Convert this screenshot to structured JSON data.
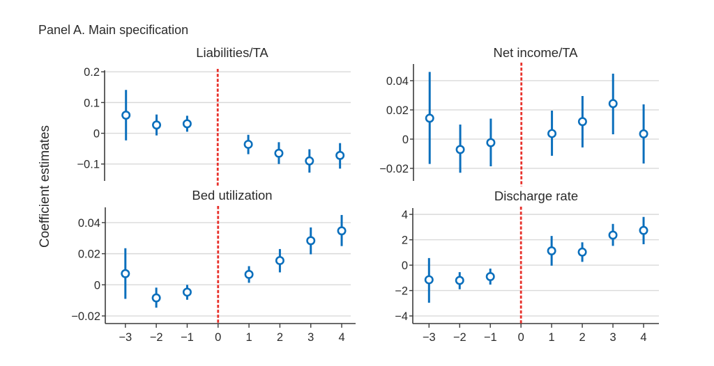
{
  "figure": {
    "panel_title": "Panel A. Main specification",
    "ylabel": "Coefficient estimates"
  },
  "chart_data": [
    {
      "type": "scatter",
      "subtype": "coefficient plot with confidence intervals",
      "title": "Liabilities/TA",
      "xlabel": "",
      "ylabel": "Coefficient estimates",
      "x": [
        -3,
        -2,
        -1,
        1,
        2,
        3,
        4
      ],
      "estimate": [
        0.059,
        0.027,
        0.031,
        -0.036,
        -0.065,
        -0.09,
        -0.072
      ],
      "ci_low": [
        -0.023,
        -0.007,
        0.005,
        -0.068,
        -0.1,
        -0.128,
        -0.115
      ],
      "ci_high": [
        0.141,
        0.061,
        0.057,
        -0.005,
        -0.029,
        -0.052,
        -0.032
      ],
      "xticks": [
        -3,
        -2,
        -1,
        0,
        1,
        2,
        3,
        4
      ],
      "xtick_labels": [
        "−3",
        "−2",
        "−1",
        "0",
        "1",
        "2",
        "3",
        "4"
      ],
      "yticks": [
        0.2,
        0.1,
        0,
        -0.1
      ],
      "ytick_labels": [
        "0.2",
        "0.1",
        "0",
        "−0.1"
      ],
      "ylim": [
        -0.155,
        0.205
      ],
      "xlim": [
        -3.7,
        4.35
      ],
      "grid": true,
      "reference_line": {
        "x": 0,
        "style": "dashed",
        "color": "#e8302a"
      },
      "show_xaxis": false
    },
    {
      "type": "scatter",
      "subtype": "coefficient plot with confidence intervals",
      "title": "Net income/TA",
      "xlabel": "",
      "ylabel": "",
      "x": [
        -3,
        -2,
        -1,
        1,
        2,
        3,
        4
      ],
      "estimate": [
        0.0143,
        -0.0071,
        -0.0024,
        0.0038,
        0.012,
        0.0243,
        0.0036
      ],
      "ci_low": [
        -0.017,
        -0.023,
        -0.0186,
        -0.0114,
        -0.0057,
        0.0033,
        -0.0167
      ],
      "ci_high": [
        0.046,
        0.01,
        0.014,
        0.0195,
        0.0295,
        0.0448,
        0.0238
      ],
      "xticks": [
        -3,
        -2,
        -1,
        0,
        1,
        2,
        3,
        4
      ],
      "xtick_labels": [
        "−3",
        "−2",
        "−1",
        "0",
        "1",
        "2",
        "3",
        "4"
      ],
      "yticks": [
        0.04,
        0.02,
        0,
        -0.02
      ],
      "ytick_labels": [
        "0.04",
        "0.02",
        "0",
        "−0.02"
      ],
      "ylim": [
        -0.0286,
        0.0514
      ],
      "xlim": [
        -3.53,
        4.5
      ],
      "grid": true,
      "reference_line": {
        "x": 0,
        "style": "dashed",
        "color": "#e8302a"
      },
      "show_xaxis": false
    },
    {
      "type": "scatter",
      "subtype": "coefficient plot with confidence intervals",
      "title": "Bed utilization",
      "xlabel": "",
      "ylabel": "Coefficient estimates",
      "x": [
        -3,
        -2,
        -1,
        1,
        2,
        3,
        4
      ],
      "estimate": [
        0.0072,
        -0.0084,
        -0.0047,
        0.0067,
        0.0156,
        0.0284,
        0.0347
      ],
      "ci_low": [
        -0.009,
        -0.0147,
        -0.0096,
        0.0013,
        0.008,
        0.0196,
        0.0249
      ],
      "ci_high": [
        0.0235,
        -0.0018,
        0.0,
        0.012,
        0.023,
        0.0369,
        0.0449
      ],
      "xticks": [
        -3,
        -2,
        -1,
        0,
        1,
        2,
        3,
        4
      ],
      "xtick_labels": [
        "−3",
        "−2",
        "−1",
        "0",
        "1",
        "2",
        "3",
        "4"
      ],
      "yticks": [
        0.04,
        0.02,
        0,
        -0.02
      ],
      "ytick_labels": [
        "0.04",
        "0.02",
        "0",
        "−0.02"
      ],
      "ylim": [
        -0.0249,
        0.0498
      ],
      "xlim": [
        -3.65,
        4.45
      ],
      "grid": true,
      "reference_line": {
        "x": 0,
        "style": "dashed",
        "color": "#e8302a"
      },
      "show_xaxis": true
    },
    {
      "type": "scatter",
      "subtype": "coefficient plot with confidence intervals",
      "title": "Discharge rate",
      "xlabel": "",
      "ylabel": "",
      "x": [
        -3,
        -2,
        -1,
        1,
        2,
        3,
        4
      ],
      "estimate": [
        -1.15,
        -1.2,
        -0.9,
        1.13,
        1.03,
        2.37,
        2.74
      ],
      "ci_low": [
        -2.96,
        -1.9,
        -1.53,
        -0.04,
        0.26,
        1.52,
        1.65
      ],
      "ci_high": [
        0.56,
        -0.55,
        -0.27,
        2.3,
        1.8,
        3.25,
        3.8
      ],
      "xticks": [
        -3,
        -2,
        -1,
        0,
        1,
        2,
        3,
        4
      ],
      "xtick_labels": [
        "−3",
        "−2",
        "−1",
        "0",
        "1",
        "2",
        "3",
        "4"
      ],
      "yticks": [
        4,
        2,
        0,
        -2,
        -4
      ],
      "ytick_labels": [
        "4",
        "2",
        "0",
        "−2",
        "−4"
      ],
      "ylim": [
        -4.6,
        4.5
      ],
      "xlim": [
        -3.53,
        4.5
      ],
      "grid": true,
      "reference_line": {
        "x": 0,
        "style": "dashed",
        "color": "#e8302a"
      },
      "show_xaxis": true
    }
  ]
}
